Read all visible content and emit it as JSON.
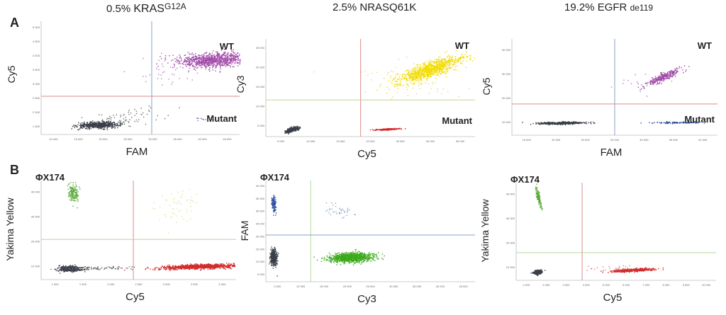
{
  "column_titles": [
    {
      "pct": "0.5%",
      "gene": "KRAS",
      "mut": "G12A"
    },
    {
      "pct": "2.5%",
      "gene": "NRASQ61K",
      "mut": ""
    },
    {
      "pct": "19.2%",
      "gene": "EGFR",
      "mut": "de119"
    }
  ],
  "row_labels": {
    "a": "A",
    "b": "B"
  },
  "chart_data": [
    {
      "type": "scatter",
      "panel": "A1",
      "xlabel": "FAM",
      "ylabel": "Cy5",
      "xlim": [
        10000,
        45000
      ],
      "ylim": [
        1000,
        5000
      ],
      "xticks": [
        "10 000",
        "15 000",
        "20 000",
        "25 000",
        "30 000",
        "35 000",
        "40 000",
        "45 000"
      ],
      "yticks": [
        "1 500",
        "2 000",
        "2 500",
        "3 000",
        "3 500",
        "4 000",
        "4 500",
        "5 000"
      ],
      "threshold_x": 29500,
      "threshold_y": 2350,
      "colors": {
        "vline": "#8aa0c8",
        "hline": "#e08a8a"
      },
      "labels": {
        "upper_right": "WT",
        "lower_right": "Mutant"
      },
      "clusters": [
        {
          "cx": 20000,
          "cy": 1350,
          "sx": 1800,
          "sy": 55,
          "n": 600,
          "color": "#3a3f4a",
          "rot": 0.02
        },
        {
          "cx": 40500,
          "cy": 3650,
          "sx": 3200,
          "sy": 130,
          "n": 900,
          "color": "#a04aa8",
          "rot": 0.04
        },
        {
          "cx": 25000,
          "cy": 1600,
          "sx": 3000,
          "sy": 150,
          "n": 70,
          "color": "#707070",
          "rot": 0.08
        },
        {
          "cx": 39000,
          "cy": 1550,
          "sx": 1200,
          "sy": 30,
          "n": 12,
          "color": "#7a7ab0",
          "rot": 0
        },
        {
          "cx": 32000,
          "cy": 3300,
          "sx": 3000,
          "sy": 250,
          "n": 40,
          "color": "#b080b8",
          "rot": 0
        }
      ]
    },
    {
      "type": "scatter",
      "panel": "A2",
      "xlabel": "Cy5",
      "ylabel": "Cy3",
      "xlim": [
        3000,
        35000
      ],
      "ylim": [
        3000,
        27000
      ],
      "xticks": [
        "5 000",
        "10 000",
        "15 000",
        "20 000",
        "25 000",
        "30 000",
        "35 000"
      ],
      "yticks": [
        "5 000",
        "10 000",
        "15 000",
        "20 000",
        "25 000"
      ],
      "threshold_x": 17500,
      "threshold_y": 12000,
      "colors": {
        "vline": "#e08a8a",
        "hline": "#b8d89a"
      },
      "labels": {
        "upper_right": "WT",
        "lower_right": "Mutant"
      },
      "clusters": [
        {
          "cx": 7000,
          "cy": 4800,
          "sx": 500,
          "sy": 250,
          "n": 400,
          "color": "#3a3f4a",
          "rot": 0.3
        },
        {
          "cx": 28000,
          "cy": 19500,
          "sx": 2600,
          "sy": 900,
          "n": 1000,
          "color": "#f2dc00",
          "rot": 0.35
        },
        {
          "cx": 21500,
          "cy": 4900,
          "sx": 1000,
          "sy": 90,
          "n": 200,
          "color": "#d42a2a",
          "rot": 0.05
        },
        {
          "cx": 26000,
          "cy": 17000,
          "sx": 4500,
          "sy": 2500,
          "n": 60,
          "color": "#e8d86a",
          "rot": 0
        }
      ]
    },
    {
      "type": "scatter",
      "panel": "A3",
      "xlabel": "FAM",
      "ylabel": "Cy5",
      "xlim": [
        10000,
        40000
      ],
      "ylim": [
        5000,
        42000
      ],
      "xticks": [
        "10 000",
        "15 000",
        "20 000",
        "25 000",
        "30 000",
        "35 000",
        "40 000"
      ],
      "yticks": [
        "10 000",
        "20 000",
        "30 000",
        "40 000"
      ],
      "threshold_x": 25000,
      "threshold_y": 17000,
      "colors": {
        "vline": "#8aa0c8",
        "hline": "#e08a8a"
      },
      "labels": {
        "upper_right": "WT",
        "lower_right": "Mutant"
      },
      "clusters": [
        {
          "cx": 17000,
          "cy": 9800,
          "sx": 1700,
          "sy": 230,
          "n": 500,
          "color": "#3a3f4a",
          "rot": 0.01
        },
        {
          "cx": 32000,
          "cy": 27500,
          "sx": 1500,
          "sy": 700,
          "n": 300,
          "color": "#a04aa8",
          "rot": 0.4
        },
        {
          "cx": 34000,
          "cy": 10000,
          "sx": 2000,
          "sy": 150,
          "n": 120,
          "color": "#3050a0",
          "rot": 0
        },
        {
          "cx": 30000,
          "cy": 25000,
          "sx": 2500,
          "sy": 2500,
          "n": 15,
          "color": "#b080b8",
          "rot": 0
        }
      ]
    },
    {
      "type": "scatter",
      "panel": "B1",
      "xlabel": "Cy5",
      "ylabel": "Yakima Yellow",
      "xlim": [
        500,
        4200
      ],
      "ylim": [
        5000,
        42000
      ],
      "xticks": [
        "1 000",
        "1 500",
        "2 000",
        "2 500",
        "3 000",
        "3 500",
        "4 000"
      ],
      "yticks": [
        "10 000",
        "20 000",
        "30 000",
        "40 000"
      ],
      "threshold_x": 2250,
      "threshold_y": 20000,
      "colors": {
        "vline": "#e08a8a",
        "hline": "#b8d89a"
      },
      "labels": {
        "upper_left": "ΦX174"
      },
      "clusters": [
        {
          "cx": 1050,
          "cy": 9200,
          "sx": 110,
          "sy": 500,
          "n": 450,
          "color": "#3a3f4a",
          "rot": 0.02
        },
        {
          "cx": 1100,
          "cy": 37500,
          "sx": 45,
          "sy": 1800,
          "n": 160,
          "color": "#5aaa3a",
          "rot": 0.2
        },
        {
          "cx": 3500,
          "cy": 10000,
          "sx": 380,
          "sy": 420,
          "n": 900,
          "color": "#d42a2a",
          "rot": 0.03
        },
        {
          "cx": 1600,
          "cy": 9400,
          "sx": 350,
          "sy": 350,
          "n": 80,
          "color": "#707070",
          "rot": 0
        },
        {
          "cx": 3000,
          "cy": 32000,
          "sx": 300,
          "sy": 3000,
          "n": 60,
          "color": "#d8e8a0",
          "rot": 0.5
        }
      ]
    },
    {
      "type": "scatter",
      "panel": "B2",
      "xlabel": "Cy3",
      "ylabel": "FAM",
      "xlim": [
        3000,
        45000
      ],
      "ylim": [
        3000,
        42000
      ],
      "xticks": [
        "5 000",
        "10 000",
        "15 000",
        "20 000",
        "25 000",
        "30 000",
        "35 000",
        "40 000",
        "45 000"
      ],
      "yticks": [
        "5 000",
        "10 000",
        "15 000",
        "20 000",
        "25 000",
        "30 000",
        "35 000",
        "40 000"
      ],
      "threshold_x": 12000,
      "threshold_y": 21000,
      "colors": {
        "vline": "#b8d89a",
        "hline": "#8aa0c8"
      },
      "labels": {
        "upper_left": "ΦX174"
      },
      "clusters": [
        {
          "cx": 4500,
          "cy": 12500,
          "sx": 350,
          "sy": 1600,
          "n": 400,
          "color": "#3a3f4a",
          "rot": 0
        },
        {
          "cx": 4500,
          "cy": 33000,
          "sx": 250,
          "sy": 1500,
          "n": 120,
          "color": "#3050a0",
          "rot": 0.05
        },
        {
          "cx": 20000,
          "cy": 12500,
          "sx": 2200,
          "sy": 900,
          "n": 900,
          "color": "#3aaa1a",
          "rot": 0.03
        },
        {
          "cx": 18000,
          "cy": 30000,
          "sx": 1800,
          "sy": 1500,
          "n": 40,
          "color": "#90a8c8",
          "rot": 0
        }
      ]
    },
    {
      "type": "scatter",
      "panel": "B3",
      "xlabel": "Cy5",
      "ylabel": "Yakima Yellow",
      "xlim": [
        500,
        10500
      ],
      "ylim": [
        5000,
        42000
      ],
      "xticks": [
        "1 000",
        "2 000",
        "3 000",
        "4 000",
        "5 000",
        "6 000",
        "7 000",
        "8 000",
        "9 000",
        "10 000"
      ],
      "yticks": [
        "10 000",
        "20 000",
        "30 000",
        "40 000"
      ],
      "threshold_x": 3800,
      "threshold_y": 15500,
      "colors": {
        "vline": "#e08a8a",
        "hline": "#b8d89a"
      },
      "labels": {
        "upper_left": "ΦX174"
      },
      "clusters": [
        {
          "cx": 1550,
          "cy": 8200,
          "sx": 100,
          "sy": 350,
          "n": 300,
          "color": "#3a3f4a",
          "rot": 0.2
        },
        {
          "cx": 1600,
          "cy": 36500,
          "sx": 40,
          "sy": 1800,
          "n": 140,
          "color": "#5aaa3a",
          "rot": 0.25
        },
        {
          "cx": 6300,
          "cy": 9000,
          "sx": 500,
          "sy": 250,
          "n": 500,
          "color": "#d42a2a",
          "rot": 0.05
        },
        {
          "cx": 5500,
          "cy": 9500,
          "sx": 900,
          "sy": 600,
          "n": 30,
          "color": "#d88080",
          "rot": 0
        }
      ]
    }
  ]
}
